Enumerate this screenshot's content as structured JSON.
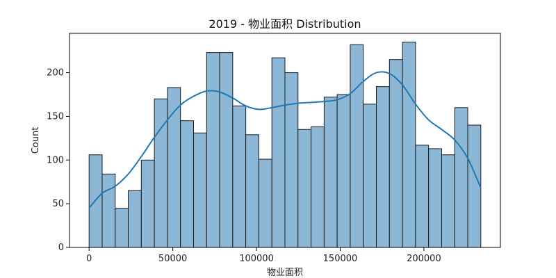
{
  "chart_data": {
    "type": "bar",
    "title": "2019 - 物业面积 Distribution",
    "xlabel": "物业面积",
    "ylabel": "Count",
    "xlim": [
      -11700,
      245700
    ],
    "ylim": [
      0,
      245
    ],
    "x_ticks": [
      0,
      50000,
      100000,
      150000,
      200000
    ],
    "x_tick_labels": [
      "0",
      "50000",
      "100000",
      "150000",
      "200000"
    ],
    "y_ticks": [
      0,
      50,
      100,
      150,
      200
    ],
    "y_tick_labels": [
      "0",
      "50",
      "100",
      "150",
      "200"
    ],
    "bin_start": 0,
    "bin_width": 7800,
    "counts": [
      106,
      84,
      45,
      65,
      100,
      170,
      183,
      145,
      131,
      223,
      223,
      162,
      129,
      101,
      217,
      200,
      135,
      138,
      172,
      175,
      232,
      164,
      184,
      215,
      235,
      117,
      113,
      106,
      160,
      140
    ],
    "kde": {
      "x": [
        0,
        7800,
        15600,
        23400,
        31200,
        39000,
        46800,
        54600,
        62400,
        70200,
        78000,
        85800,
        93600,
        101400,
        109200,
        117000,
        124800,
        132600,
        140400,
        148200,
        156000,
        163800,
        171600,
        179400,
        187200,
        195000,
        202800,
        210600,
        218400,
        226200,
        234000
      ],
      "y": [
        45,
        62,
        70,
        84,
        104,
        126,
        146,
        163,
        173,
        179,
        178,
        171,
        162,
        158,
        160,
        163,
        165,
        166,
        167,
        169,
        176,
        190,
        200,
        199,
        186,
        164,
        146,
        135,
        123,
        102,
        68
      ]
    },
    "bar_fill": "#8db7d6",
    "bar_edge": "#1a1a1a",
    "kde_color": "#1f77b4",
    "grid": false,
    "legend": "none"
  }
}
